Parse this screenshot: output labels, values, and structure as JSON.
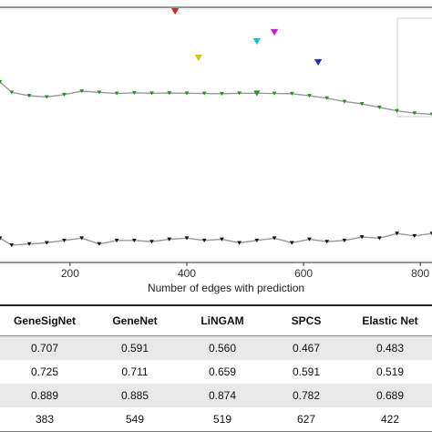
{
  "chart_data": {
    "type": "line",
    "xlabel": "Number of edges with prediction",
    "x_ticks": [
      200,
      400,
      600,
      800
    ],
    "xlim": [
      80,
      820
    ],
    "ylim": [
      0.0,
      1.0
    ],
    "series": [
      {
        "color": "#999999",
        "marker_color": "#2e8b2e",
        "x": [
          80,
          100,
          130,
          160,
          190,
          220,
          250,
          280,
          310,
          340,
          370,
          400,
          430,
          460,
          490,
          520,
          550,
          580,
          610,
          640,
          670,
          700,
          730,
          760,
          790,
          820
        ],
        "y": [
          0.725,
          0.68,
          0.665,
          0.66,
          0.67,
          0.685,
          0.68,
          0.675,
          0.678,
          0.676,
          0.677,
          0.676,
          0.675,
          0.674,
          0.676,
          0.676,
          0.675,
          0.674,
          0.665,
          0.655,
          0.64,
          0.63,
          0.615,
          0.6,
          0.59,
          0.585
        ]
      },
      {
        "color": "#999999",
        "marker_color": "#111111",
        "x": [
          80,
          100,
          130,
          160,
          190,
          220,
          250,
          280,
          310,
          340,
          370,
          400,
          430,
          460,
          490,
          520,
          550,
          580,
          610,
          640,
          670,
          700,
          730,
          760,
          790,
          820
        ],
        "y": [
          0.05,
          0.02,
          0.025,
          0.03,
          0.04,
          0.05,
          0.025,
          0.04,
          0.04,
          0.035,
          0.045,
          0.05,
          0.04,
          0.045,
          0.03,
          0.04,
          0.05,
          0.03,
          0.045,
          0.035,
          0.04,
          0.055,
          0.05,
          0.07,
          0.06,
          0.07
        ]
      }
    ],
    "points": [
      {
        "x": 380,
        "y": 1.03,
        "color": "#e0201b"
      },
      {
        "x": 420,
        "y": 0.83,
        "color": "#c8c820"
      },
      {
        "x": 520,
        "y": 0.9,
        "color": "#20c4c8"
      },
      {
        "x": 550,
        "y": 0.94,
        "color": "#c41fc8"
      },
      {
        "x": 625,
        "y": 0.81,
        "color": "#1d2fc4"
      },
      {
        "x": 520,
        "y": 0.676,
        "color": "#2e8b2e"
      }
    ]
  },
  "table": {
    "headers": [
      "GeneSigNet",
      "GeneNet",
      "LiNGAM",
      "SPCS",
      "Elastic Net"
    ],
    "rows": [
      [
        "0.707",
        "0.591",
        "0.560",
        "0.467",
        "0.483"
      ],
      [
        "0.725",
        "0.711",
        "0.659",
        "0.591",
        "0.519"
      ],
      [
        "0.889",
        "0.885",
        "0.874",
        "0.782",
        "0.689"
      ],
      [
        "383",
        "549",
        "519",
        "627",
        "422"
      ]
    ]
  }
}
